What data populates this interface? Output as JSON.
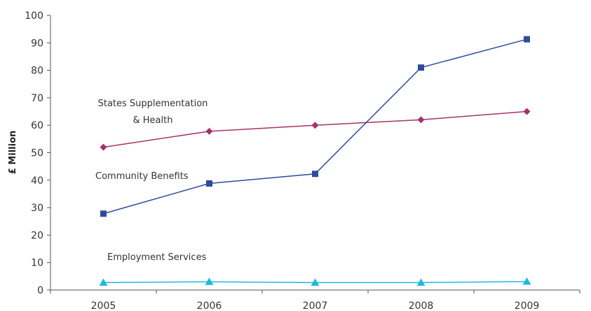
{
  "chart_data": {
    "type": "line",
    "title": "",
    "xlabel": "",
    "ylabel": "£ Million",
    "categories": [
      "2005",
      "2006",
      "2007",
      "2008",
      "2009"
    ],
    "ylim": [
      0,
      100
    ],
    "yticks": [
      "0",
      "10",
      "20",
      "30",
      "40",
      "50",
      "60",
      "70",
      "80",
      "90",
      "100"
    ],
    "grid": false,
    "legend": "none",
    "series": [
      {
        "name": "States Supplementation & Health",
        "label_lines": [
          "States Supplementation",
          "& Health"
        ],
        "values": [
          52,
          57.8,
          60,
          62,
          65
        ],
        "color": "#a3336e",
        "marker": "diamond"
      },
      {
        "name": "Community Benefits",
        "label_lines": [
          "Community Benefits"
        ],
        "values": [
          27.8,
          38.8,
          42.3,
          81,
          91.3
        ],
        "color": "#2e4b9b",
        "marker": "square"
      },
      {
        "name": "Employment Services",
        "label_lines": [
          "Employment Services"
        ],
        "values": [
          2.7,
          3,
          2.7,
          2.7,
          3.1
        ],
        "color": "#1fb8e0",
        "marker": "triangle"
      }
    ]
  }
}
